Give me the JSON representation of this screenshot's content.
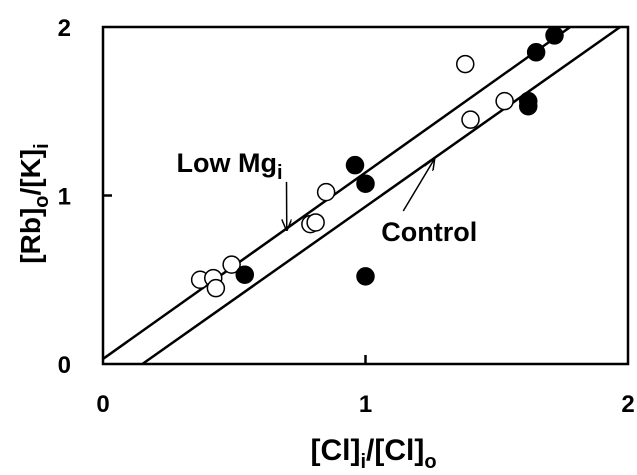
{
  "chart_data": {
    "type": "scatter",
    "xlim": [
      0,
      2
    ],
    "ylim": [
      0,
      2
    ],
    "x_ticks": [
      "0",
      "1",
      "2"
    ],
    "y_ticks": [
      "0",
      "1",
      "2"
    ],
    "xlabel": {
      "main": "[Cl]",
      "sub1": "i",
      "mid": "/[Cl]",
      "sub2": "o"
    },
    "ylabel": {
      "main": "[Rb]",
      "sub1": "o",
      "mid": "/[K]",
      "sub2": "i"
    },
    "grid": false,
    "series": [
      {
        "marker": "open-circle",
        "points": [
          [
            0.37,
            0.5
          ],
          [
            0.42,
            0.51
          ],
          [
            0.43,
            0.45
          ],
          [
            0.49,
            0.59
          ],
          [
            0.79,
            0.83
          ],
          [
            0.81,
            0.84
          ],
          [
            0.85,
            1.02
          ],
          [
            1.38,
            1.78
          ],
          [
            1.4,
            1.45
          ],
          [
            1.53,
            1.56
          ]
        ]
      },
      {
        "marker": "filled-circle",
        "points": [
          [
            0.54,
            0.53
          ],
          [
            0.96,
            1.18
          ],
          [
            1.0,
            1.07
          ],
          [
            1.0,
            0.52
          ],
          [
            1.62,
            1.56
          ],
          [
            1.62,
            1.53
          ],
          [
            1.65,
            1.85
          ],
          [
            1.72,
            1.95
          ]
        ]
      }
    ],
    "lines": [
      {
        "label": "Low Mg",
        "label_sub": "i",
        "x0": 0,
        "y0": 0.03,
        "x1": 1.78,
        "y1": 2.0
      },
      {
        "label": "Control",
        "x0": 0.15,
        "y0": 0,
        "x1": 1.97,
        "y1": 2.0
      }
    ],
    "annotations": [
      {
        "text_ref": "Low Mg",
        "sub": "i",
        "text_x": 0.28,
        "text_y": 1.14,
        "arrow_to_x": 0.7,
        "arrow_to_y": 0.8
      },
      {
        "text_ref": "Control",
        "text_x": 1.06,
        "text_y": 0.73,
        "arrow_to_x": 1.26,
        "arrow_to_y": 1.21
      }
    ]
  }
}
